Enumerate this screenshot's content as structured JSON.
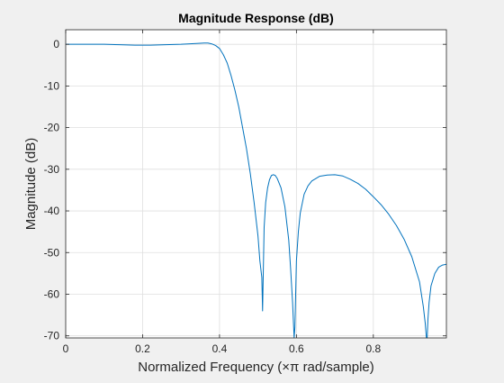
{
  "chart_data": {
    "type": "line",
    "title": "Magnitude Response (dB)",
    "xlabel": "Normalized Frequency (×π rad/sample)",
    "ylabel": "Magnitude (dB)",
    "xlim": [
      0,
      0.99
    ],
    "ylim": [
      -70.5,
      3.5
    ],
    "grid": true,
    "x_ticks": [
      0,
      0.2,
      0.4,
      0.6,
      0.8
    ],
    "x_tick_labels": [
      "0",
      "0.2",
      "0.4",
      "0.6",
      "0.8"
    ],
    "y_ticks": [
      0,
      -10,
      -20,
      -30,
      -40,
      -50,
      -60,
      -70
    ],
    "y_tick_labels": [
      "0",
      "-10",
      "-20",
      "-30",
      "-40",
      "-50",
      "-60",
      "-70"
    ],
    "line_color": "#0072bd",
    "series": [
      {
        "x": [
          0,
          0.05,
          0.1,
          0.14,
          0.18,
          0.22,
          0.26,
          0.3,
          0.34,
          0.36,
          0.37,
          0.38,
          0.39,
          0.4,
          0.41,
          0.42,
          0.43,
          0.44,
          0.45,
          0.46,
          0.47,
          0.48,
          0.49,
          0.5,
          0.505,
          0.51,
          0.512,
          0.516,
          0.52,
          0.525,
          0.53,
          0.535,
          0.54,
          0.545,
          0.55,
          0.56,
          0.57,
          0.58,
          0.585,
          0.59,
          0.594,
          0.596,
          0.6,
          0.605,
          0.61,
          0.62,
          0.63,
          0.64,
          0.66,
          0.68,
          0.7,
          0.72,
          0.74,
          0.76,
          0.78,
          0.8,
          0.82,
          0.84,
          0.86,
          0.88,
          0.9,
          0.92,
          0.93,
          0.935,
          0.938,
          0.94,
          0.942,
          0.945,
          0.95,
          0.96,
          0.97,
          0.98,
          0.99
        ],
        "y": [
          0,
          0,
          0,
          -0.1,
          -0.2,
          -0.2,
          -0.1,
          0,
          0.2,
          0.3,
          0.3,
          0.1,
          -0.3,
          -1,
          -2.5,
          -4.5,
          -7.5,
          -11,
          -15,
          -20,
          -25,
          -31,
          -38,
          -46,
          -52,
          -56,
          -64,
          -44,
          -38,
          -34.5,
          -32.5,
          -31.5,
          -31.3,
          -31.5,
          -32.2,
          -34.5,
          -39,
          -47,
          -54,
          -62,
          -70.5,
          -68,
          -52,
          -45,
          -40.5,
          -36,
          -34,
          -32.8,
          -31.7,
          -31.4,
          -31.3,
          -31.6,
          -32.4,
          -33.4,
          -34.8,
          -36.6,
          -38.5,
          -40.8,
          -43.5,
          -46.8,
          -51,
          -57,
          -63,
          -67,
          -70.5,
          -70.5,
          -66,
          -62,
          -58,
          -55,
          -53.5,
          -53,
          -52.8
        ]
      }
    ]
  }
}
